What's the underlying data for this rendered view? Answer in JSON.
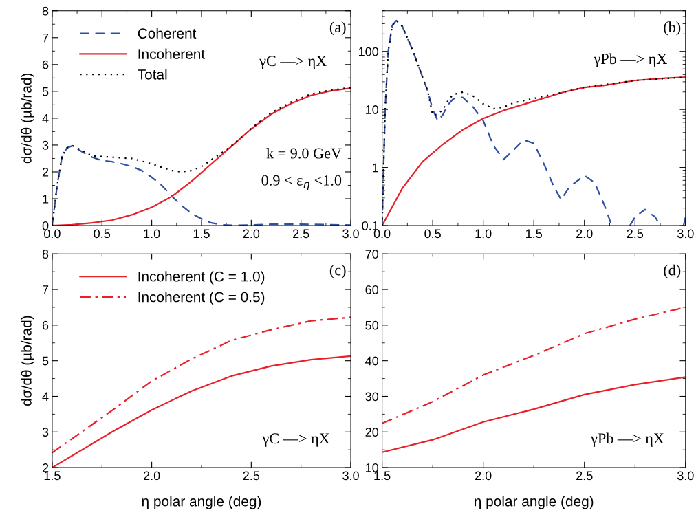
{
  "chart_data": [
    {
      "type": "line",
      "ylabel": "dσ/dθ (µb/rad)",
      "xlim": [
        0,
        3
      ],
      "ylim": [
        0,
        8
      ],
      "xticks": [
        {
          "value": 0,
          "label": "0.0"
        },
        {
          "value": 0.5,
          "label": "0.5"
        },
        {
          "value": 1,
          "label": "1.0"
        },
        {
          "value": 1.5,
          "label": "1.5"
        },
        {
          "value": 2,
          "label": "2.0"
        },
        {
          "value": 2.5,
          "label": "2.5"
        },
        {
          "value": 3,
          "label": "3.0"
        }
      ],
      "yticks": [
        0,
        1,
        2,
        3,
        4,
        5,
        6,
        7,
        8
      ],
      "grid": false,
      "legend": "top left",
      "annotations": [
        "(a)",
        "γC —> ηX",
        "k = 9.0 GeV",
        "0.9 < ε$_{η}$ <1.0"
      ],
      "series": [
        {
          "name": "Coherent",
          "color": "#2f4f9f",
          "line_style": "dashed",
          "x": [
            0,
            0.05,
            0.1,
            0.15,
            0.2,
            0.3,
            0.4,
            0.5,
            0.6,
            0.7,
            0.8,
            0.9,
            1.0,
            1.1,
            1.2,
            1.3,
            1.4,
            1.5,
            1.6,
            1.7,
            1.8,
            2.0,
            2.2,
            2.5,
            2.8,
            3.0
          ],
          "values": [
            0,
            1.5,
            2.6,
            2.9,
            2.97,
            2.75,
            2.55,
            2.42,
            2.38,
            2.3,
            2.2,
            2.05,
            1.8,
            1.5,
            1.1,
            0.75,
            0.45,
            0.25,
            0.1,
            0.03,
            0.01,
            0.02,
            0.05,
            0.05,
            0.03,
            0.02
          ]
        },
        {
          "name": "Incoherent",
          "color": "#e8202a",
          "line_style": "solid",
          "x": [
            0,
            0.2,
            0.4,
            0.6,
            0.8,
            1.0,
            1.2,
            1.4,
            1.6,
            1.8,
            2.0,
            2.2,
            2.4,
            2.6,
            2.8,
            3.0
          ],
          "values": [
            0,
            0.03,
            0.1,
            0.2,
            0.4,
            0.68,
            1.08,
            1.65,
            2.3,
            2.95,
            3.6,
            4.15,
            4.55,
            4.85,
            5.02,
            5.12
          ]
        },
        {
          "name": "Total",
          "color": "#000000",
          "line_style": "dotted",
          "x": [
            0,
            0.05,
            0.1,
            0.15,
            0.2,
            0.3,
            0.4,
            0.5,
            0.6,
            0.7,
            0.8,
            0.9,
            1.0,
            1.1,
            1.2,
            1.3,
            1.4,
            1.5,
            1.6,
            1.7,
            1.8,
            2.0,
            2.2,
            2.4,
            2.6,
            2.8,
            3.0
          ],
          "values": [
            0,
            1.5,
            2.6,
            2.9,
            2.98,
            2.8,
            2.6,
            2.57,
            2.55,
            2.52,
            2.5,
            2.4,
            2.3,
            2.17,
            2.05,
            2.0,
            2.05,
            2.2,
            2.45,
            2.7,
            2.97,
            3.62,
            4.2,
            4.6,
            4.9,
            5.05,
            5.14
          ]
        }
      ]
    },
    {
      "type": "line",
      "log": "y",
      "xlim": [
        0,
        3
      ],
      "ylim": [
        0.1,
        500
      ],
      "xticks": [
        {
          "value": 0,
          "label": "0.0"
        },
        {
          "value": 0.5,
          "label": "0.5"
        },
        {
          "value": 1,
          "label": "1.0"
        },
        {
          "value": 1.5,
          "label": "1.5"
        },
        {
          "value": 2,
          "label": "2.0"
        },
        {
          "value": 2.5,
          "label": "2.5"
        },
        {
          "value": 3,
          "label": "3.0"
        }
      ],
      "yticks": [
        0.1,
        1,
        10,
        100
      ],
      "grid": false,
      "annotations": [
        "(b)",
        "γPb —> ηX"
      ],
      "series": [
        {
          "color": "#2f4f9f",
          "line_style": "dashed",
          "x": [
            0,
            0.01,
            0.03,
            0.06,
            0.1,
            0.14,
            0.2,
            0.3,
            0.4,
            0.45,
            0.5,
            0.55,
            0.6,
            0.65,
            0.7,
            0.75,
            0.8,
            0.9,
            1.0,
            1.1,
            1.2,
            1.3,
            1.4,
            1.5,
            1.6,
            1.7,
            1.77,
            1.85,
            2.0,
            2.1,
            2.2,
            2.27,
            2.35,
            2.45,
            2.5,
            2.6,
            2.7,
            2.75,
            2.85,
            2.98,
            3.0
          ],
          "values": [
            0.1,
            0.5,
            10,
            100,
            280,
            340,
            270,
            107,
            36,
            21,
            10,
            6.4,
            8.1,
            12,
            15,
            16.7,
            16,
            11,
            6.4,
            2.4,
            1.37,
            2,
            3,
            2.6,
            1.15,
            0.46,
            0.28,
            0.46,
            0.73,
            0.55,
            0.22,
            0.1,
            null,
            0.1,
            0.14,
            0.19,
            0.14,
            0.1,
            null,
            0.1,
            0.14
          ]
        },
        {
          "color": "#e8202a",
          "line_style": "solid",
          "x": [
            0,
            0.2,
            0.4,
            0.6,
            0.8,
            1.0,
            1.2,
            1.5,
            1.8,
            2.0,
            2.2,
            2.5,
            2.8,
            3.0
          ],
          "values": [
            0.1,
            0.44,
            1.26,
            2.5,
            4.5,
            7,
            9.6,
            13.9,
            20,
            24,
            26,
            31.6,
            34.6,
            36
          ]
        },
        {
          "color": "#000000",
          "line_style": "dotted",
          "x": [
            0,
            0.01,
            0.03,
            0.06,
            0.1,
            0.14,
            0.2,
            0.3,
            0.4,
            0.45,
            0.5,
            0.55,
            0.6,
            0.65,
            0.7,
            0.8,
            0.9,
            1.0,
            1.1,
            1.2,
            1.3,
            1.5,
            1.8,
            2.0,
            2.5,
            3.0
          ],
          "values": [
            0.1,
            0.5,
            10,
            100,
            280,
            340,
            270,
            107,
            36,
            21,
            8,
            8.2,
            10,
            14,
            18,
            20,
            17,
            12.5,
            10.3,
            11,
            13,
            15.5,
            20,
            24,
            31.6,
            36
          ]
        }
      ]
    },
    {
      "type": "line",
      "ylabel": "dσ/dθ (µb/rad)",
      "xlabel": "η polar angle (deg)",
      "xlim": [
        1.5,
        3
      ],
      "ylim": [
        2,
        8
      ],
      "xticks": [
        {
          "value": 1.5,
          "label": "1.5"
        },
        {
          "value": 2,
          "label": "2.0"
        },
        {
          "value": 2.5,
          "label": "2.5"
        },
        {
          "value": 3,
          "label": "3.0"
        }
      ],
      "yticks": [
        2,
        3,
        4,
        5,
        6,
        7,
        8
      ],
      "grid": false,
      "legend": "top left",
      "annotations": [
        "(c)",
        "γC —> ηX"
      ],
      "series": [
        {
          "name": "Incoherent (C = 1.0)",
          "color": "#e8202a",
          "line_style": "solid",
          "x": [
            1.5,
            1.8,
            2.0,
            2.2,
            2.4,
            2.6,
            2.8,
            3.0
          ],
          "values": [
            2.0,
            3.0,
            3.62,
            4.15,
            4.57,
            4.85,
            5.03,
            5.13
          ]
        },
        {
          "name": "Incoherent (C = 0.5)",
          "color": "#e8202a",
          "line_style": "dashdot",
          "x": [
            1.5,
            1.8,
            2.0,
            2.2,
            2.4,
            2.6,
            2.8,
            3.0
          ],
          "values": [
            2.42,
            3.6,
            4.43,
            5.05,
            5.57,
            5.87,
            6.12,
            6.22
          ]
        }
      ]
    },
    {
      "type": "line",
      "xlabel": "η polar angle (deg)",
      "xlim": [
        1.5,
        3
      ],
      "ylim": [
        10,
        70
      ],
      "xticks": [
        {
          "value": 1.5,
          "label": "1.5"
        },
        {
          "value": 2,
          "label": "2.0"
        },
        {
          "value": 2.5,
          "label": "2.5"
        },
        {
          "value": 3,
          "label": "3.0"
        }
      ],
      "yticks": [
        10,
        20,
        30,
        40,
        50,
        60,
        70
      ],
      "grid": false,
      "annotations": [
        "(d)",
        "γPb —> ηX"
      ],
      "series": [
        {
          "color": "#e8202a",
          "line_style": "solid",
          "x": [
            1.5,
            1.75,
            2.0,
            2.25,
            2.5,
            2.75,
            3.0
          ],
          "values": [
            14.3,
            17.8,
            22.8,
            26.4,
            30.5,
            33.3,
            35.4
          ]
        },
        {
          "color": "#e8202a",
          "line_style": "dashdot",
          "x": [
            1.5,
            1.75,
            2.0,
            2.25,
            2.5,
            2.75,
            3.0
          ],
          "values": [
            22.4,
            28.5,
            36,
            41.5,
            47.6,
            51.7,
            55
          ]
        }
      ]
    }
  ]
}
